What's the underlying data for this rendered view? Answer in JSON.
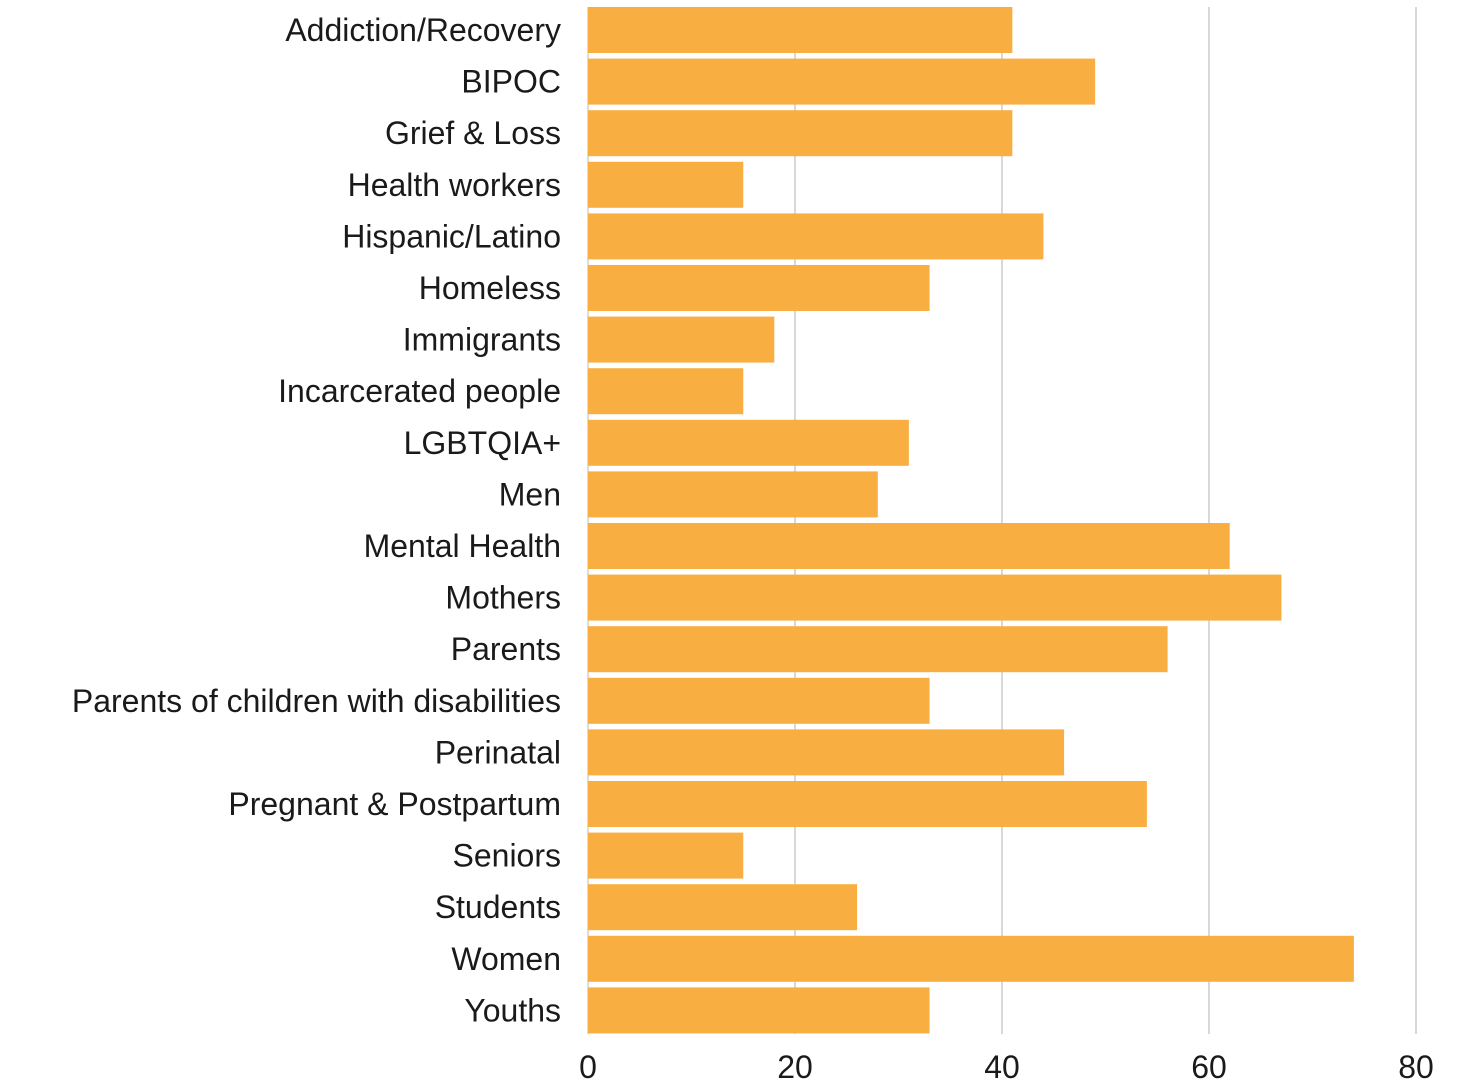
{
  "chart_data": {
    "type": "bar",
    "orientation": "horizontal",
    "title": "",
    "xlabel": "",
    "ylabel": "",
    "categories": [
      "Addiction/Recovery",
      "BIPOC",
      "Grief & Loss",
      "Health workers",
      "Hispanic/Latino",
      "Homeless",
      "Immigrants",
      "Incarcerated people",
      "LGBTQIA+",
      "Men",
      "Mental Health",
      "Mothers",
      "Parents",
      "Parents of children with disabilities",
      "Perinatal",
      "Pregnant & Postpartum",
      "Seniors",
      "Students",
      "Women",
      "Youths"
    ],
    "values": [
      41,
      49,
      41,
      15,
      44,
      33,
      18,
      15,
      31,
      28,
      62,
      67,
      56,
      33,
      46,
      54,
      15,
      26,
      74,
      33
    ],
    "xlim": [
      0,
      80
    ],
    "xticks": [
      "0",
      "20",
      "40",
      "60",
      "80"
    ],
    "grid": true,
    "bar_color": "#F8AE41",
    "grid_color": "#cccccc"
  }
}
